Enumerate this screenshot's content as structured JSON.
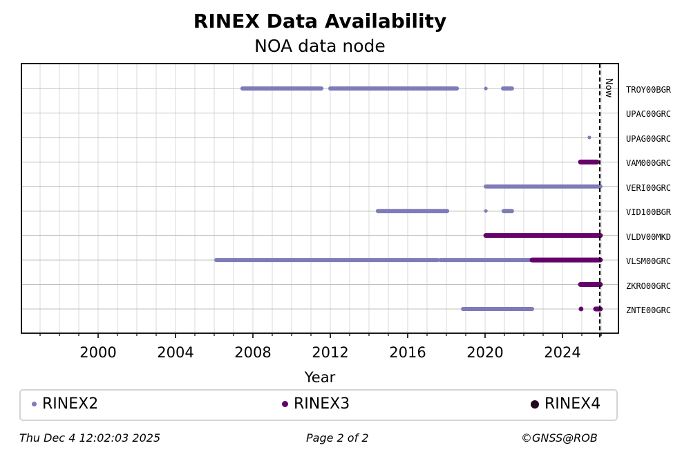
{
  "title": "RINEX Data Availability",
  "subtitle": "NOA data node",
  "now_label": "Now",
  "footer": {
    "timestamp": "Thu Dec  4 12:02:03 2025",
    "page": "Page 2 of 2",
    "credit": "©GNSS@ROB"
  },
  "legend": [
    {
      "label": "RINEX2",
      "color": "#7f7bb9",
      "size": 7
    },
    {
      "label": "RINEX3",
      "color": "#66006a",
      "size": 9
    },
    {
      "label": "RINEX4",
      "color": "#21081f",
      "size": 12
    }
  ],
  "chart_data": {
    "type": "scatter",
    "title": "RINEX Data Availability",
    "subtitle": "NOA data node",
    "xlabel": "Year",
    "ylabel": "",
    "xlim": [
      1996.0,
      2026.9
    ],
    "xticks": [
      2000,
      2004,
      2008,
      2012,
      2016,
      2020,
      2024
    ],
    "now": 2025.93,
    "grid": true,
    "legend_position": "bottom",
    "legend_entries": [
      "RINEX2",
      "RINEX3",
      "RINEX4"
    ],
    "stations": [
      {
        "name": "TROY00BGR",
        "segments": [
          {
            "type": "RINEX2",
            "start": 2007.46,
            "end": 2011.54
          },
          {
            "type": "RINEX2",
            "start": 2012.0,
            "end": 2013.46
          },
          {
            "type": "RINEX2",
            "start": 2013.5,
            "end": 2018.54
          },
          {
            "type": "RINEX2",
            "start": 2020.04,
            "end": 2020.04
          },
          {
            "type": "RINEX2",
            "start": 2020.93,
            "end": 2021.39
          }
        ]
      },
      {
        "name": "UPAC00GRC",
        "segments": []
      },
      {
        "name": "UPAG00GRC",
        "segments": [
          {
            "type": "RINEX2",
            "start": 2025.39,
            "end": 2025.39
          }
        ]
      },
      {
        "name": "VAM000GRC",
        "segments": [
          {
            "type": "RINEX3",
            "start": 2024.93,
            "end": 2025.79
          }
        ]
      },
      {
        "name": "VERI00GRC",
        "segments": [
          {
            "type": "RINEX2",
            "start": 2020.04,
            "end": 2025.96
          }
        ]
      },
      {
        "name": "VID100BGR",
        "segments": [
          {
            "type": "RINEX2",
            "start": 2014.46,
            "end": 2018.04
          },
          {
            "type": "RINEX2",
            "start": 2020.04,
            "end": 2020.04
          },
          {
            "type": "RINEX2",
            "start": 2020.96,
            "end": 2021.39
          }
        ]
      },
      {
        "name": "VLDV00MKD",
        "segments": [
          {
            "type": "RINEX3",
            "start": 2020.04,
            "end": 2025.96
          }
        ]
      },
      {
        "name": "VLSM00GRC",
        "segments": [
          {
            "type": "RINEX2",
            "start": 2006.11,
            "end": 2017.54
          },
          {
            "type": "RINEX2",
            "start": 2017.68,
            "end": 2022.43
          },
          {
            "type": "RINEX3",
            "start": 2022.43,
            "end": 2025.96
          }
        ]
      },
      {
        "name": "ZKRO00GRC",
        "segments": [
          {
            "type": "RINEX3",
            "start": 2024.93,
            "end": 2025.96
          }
        ]
      },
      {
        "name": "ZNTE00GRC",
        "segments": [
          {
            "type": "RINEX2",
            "start": 2018.86,
            "end": 2021.86
          },
          {
            "type": "RINEX2",
            "start": 2021.89,
            "end": 2022.43
          },
          {
            "type": "RINEX3",
            "start": 2024.96,
            "end": 2024.96
          },
          {
            "type": "RINEX3",
            "start": 2025.71,
            "end": 2025.96
          }
        ]
      }
    ]
  }
}
